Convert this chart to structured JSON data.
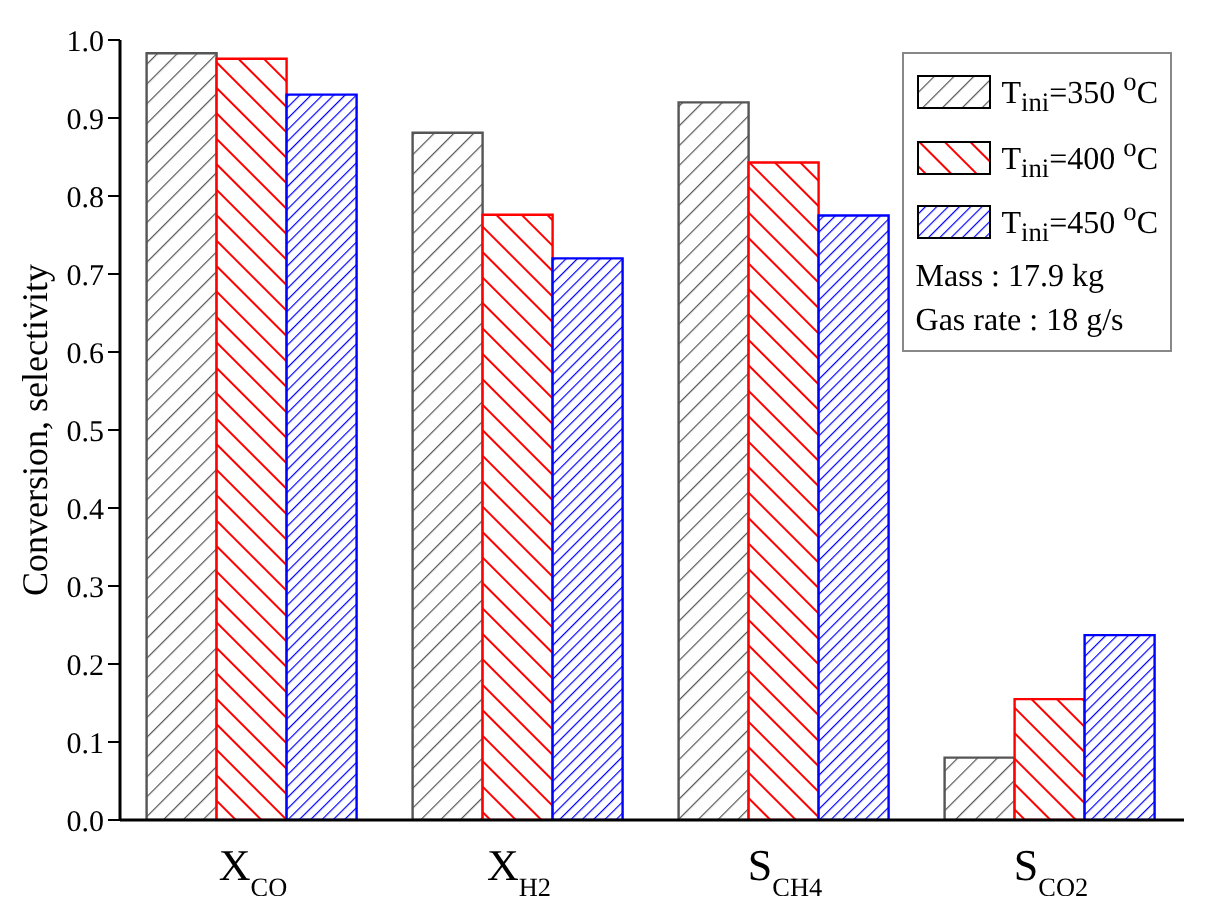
{
  "chart_data": {
    "type": "bar",
    "ylabel": "Conversion, selectivity",
    "categories": [
      "X$_{CO}$",
      "X$_{H2}$",
      "S$_{CH4}$",
      "S$_{CO2}$"
    ],
    "series": [
      {
        "name": "T$_{ini}$=350 $^{o}$C",
        "color": "#555555",
        "values": [
          0.983,
          0.881,
          0.92,
          0.08
        ]
      },
      {
        "name": "T$_{ini}$=400 $^{o}$C",
        "color": "#ff0000",
        "values": [
          0.976,
          0.776,
          0.843,
          0.155
        ]
      },
      {
        "name": "T$_{ini}$=450 $^{o}$C",
        "color": "#0000ff",
        "values": [
          0.93,
          0.72,
          0.775,
          0.237
        ]
      }
    ],
    "ylim": [
      0,
      1.0
    ],
    "yticks": [
      {
        "value": 0,
        "label": "0.0"
      },
      {
        "value": 0.1,
        "label": "0.1"
      },
      {
        "value": 0.2,
        "label": "0.2"
      },
      {
        "value": 0.3,
        "label": "0.3"
      },
      {
        "value": 0.4,
        "label": "0.4"
      },
      {
        "value": 0.5,
        "label": "0.5"
      },
      {
        "value": 0.6,
        "label": "0.6"
      },
      {
        "value": 0.7,
        "label": "0.7"
      },
      {
        "value": 0.8,
        "label": "0.8"
      },
      {
        "value": 0.9,
        "label": "0.9"
      },
      {
        "value": 1.0,
        "label": "1.0"
      }
    ],
    "legend": "top right",
    "annotations": [
      "Mass : 17.9 kg",
      "Gas rate : 18 g/s"
    ],
    "grid": false
  }
}
